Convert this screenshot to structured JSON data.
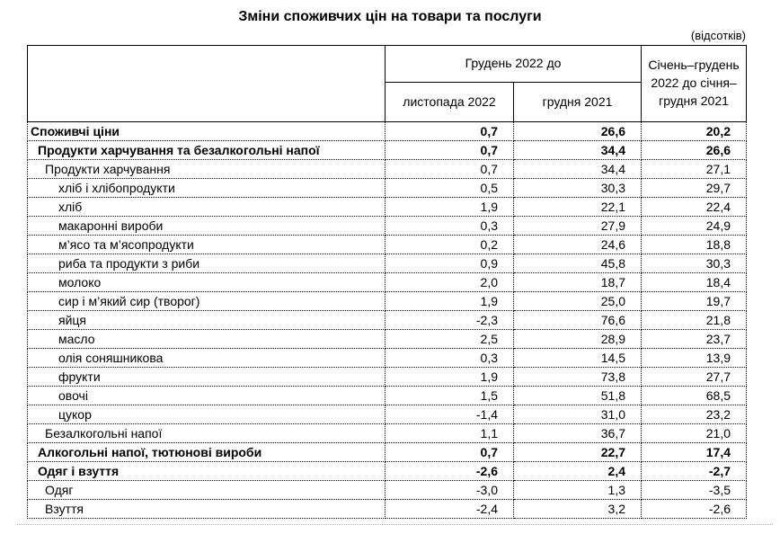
{
  "page": {
    "title": "Зміни споживчих цін на товари та послуги",
    "units_note": "(відсотків)"
  },
  "colors": {
    "text": "#000000",
    "border_solid": "#000000",
    "border_dotted": "#000000",
    "faint_line": "#ababab",
    "background": "#ffffff"
  },
  "table": {
    "header": {
      "group_col": "Грудень 2022 до",
      "sub_col_1": "листопада 2022",
      "sub_col_2": "грудня 2021",
      "period_col": "Січень–грудень 2022 до січня–грудня 2021"
    },
    "rows": [
      {
        "label": "Споживчі ціни",
        "indent": 0,
        "bold": true,
        "values": [
          "0,7",
          "26,6",
          "20,2"
        ]
      },
      {
        "label": "Продукти харчування та безалкогольні напої",
        "indent": 1,
        "bold": true,
        "values": [
          "0,7",
          "34,4",
          "26,6"
        ]
      },
      {
        "label": "Продукти харчування",
        "indent": 2,
        "bold": false,
        "values": [
          "0,7",
          "34,4",
          "27,1"
        ]
      },
      {
        "label": "хліб і хлібопродукти",
        "indent": 3,
        "bold": false,
        "values": [
          "0,5",
          "30,3",
          "29,7"
        ]
      },
      {
        "label": "хліб",
        "indent": 3,
        "bold": false,
        "values": [
          "1,9",
          "22,1",
          "22,4"
        ]
      },
      {
        "label": "макаронні вироби",
        "indent": 3,
        "bold": false,
        "values": [
          "0,3",
          "27,9",
          "24,9"
        ]
      },
      {
        "label": "м’ясо та м’ясопродукти",
        "indent": 3,
        "bold": false,
        "values": [
          "0,2",
          "24,6",
          "18,8"
        ]
      },
      {
        "label": "риба та продукти з риби",
        "indent": 3,
        "bold": false,
        "values": [
          "0,9",
          "45,8",
          "30,3"
        ]
      },
      {
        "label": "молоко",
        "indent": 3,
        "bold": false,
        "values": [
          "2,0",
          "18,7",
          "18,4"
        ]
      },
      {
        "label": "сир і м’який сир (творог)",
        "indent": 3,
        "bold": false,
        "values": [
          "1,9",
          "25,0",
          "19,7"
        ]
      },
      {
        "label": "яйця",
        "indent": 3,
        "bold": false,
        "values": [
          "-2,3",
          "76,6",
          "21,8"
        ]
      },
      {
        "label": "масло",
        "indent": 3,
        "bold": false,
        "values": [
          "2,5",
          "28,9",
          "23,7"
        ]
      },
      {
        "label": "олія соняшникова",
        "indent": 3,
        "bold": false,
        "values": [
          "0,3",
          "14,5",
          "13,9"
        ]
      },
      {
        "label": "фрукти",
        "indent": 3,
        "bold": false,
        "values": [
          "1,9",
          "73,8",
          "27,7"
        ]
      },
      {
        "label": "овочі",
        "indent": 3,
        "bold": false,
        "values": [
          "1,5",
          "51,8",
          "68,5"
        ]
      },
      {
        "label": "цукор",
        "indent": 3,
        "bold": false,
        "values": [
          "-1,4",
          "31,0",
          "23,2"
        ]
      },
      {
        "label": "Безалкогольні напої",
        "indent": 2,
        "bold": false,
        "values": [
          "1,1",
          "36,7",
          "21,0"
        ]
      },
      {
        "label": "Алкогольні напої, тютюнові вироби",
        "indent": 1,
        "bold": true,
        "values": [
          "0,7",
          "22,7",
          "17,4"
        ]
      },
      {
        "label": "Одяг і взуття",
        "indent": 1,
        "bold": true,
        "values": [
          "-2,6",
          "2,4",
          "-2,7"
        ]
      },
      {
        "label": "Одяг",
        "indent": 2,
        "bold": false,
        "values": [
          "-3,0",
          "1,3",
          "-3,5"
        ]
      },
      {
        "label": "Взуття",
        "indent": 2,
        "bold": false,
        "values": [
          "-2,4",
          "3,2",
          "-2,6"
        ]
      }
    ]
  }
}
